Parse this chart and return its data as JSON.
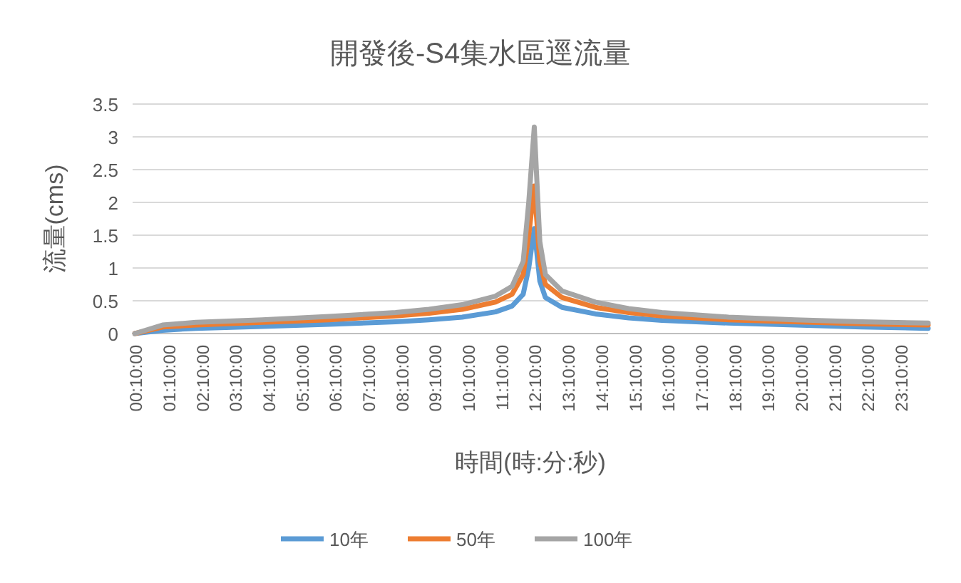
{
  "chart_data": {
    "type": "line",
    "title": "開發後-S4集水區逕流量",
    "xlabel": "時間(時:分:秒)",
    "ylabel": "流量(cms)",
    "xlim": [
      0.1,
      24.0
    ],
    "xticks": [
      {
        "value": 0.1667,
        "label": "00:10:00"
      },
      {
        "value": 1.1667,
        "label": "01:10:00"
      },
      {
        "value": 2.1667,
        "label": "02:10:00"
      },
      {
        "value": 3.1667,
        "label": "03:10:00"
      },
      {
        "value": 4.1667,
        "label": "04:10:00"
      },
      {
        "value": 5.1667,
        "label": "05:10:00"
      },
      {
        "value": 6.1667,
        "label": "06:10:00"
      },
      {
        "value": 7.1667,
        "label": "07:10:00"
      },
      {
        "value": 8.1667,
        "label": "08:10:00"
      },
      {
        "value": 9.1667,
        "label": "09:10:00"
      },
      {
        "value": 10.1667,
        "label": "10:10:00"
      },
      {
        "value": 11.1667,
        "label": "11:10:00"
      },
      {
        "value": 12.1667,
        "label": "12:10:00"
      },
      {
        "value": 13.1667,
        "label": "13:10:00"
      },
      {
        "value": 14.1667,
        "label": "14:10:00"
      },
      {
        "value": 15.1667,
        "label": "15:10:00"
      },
      {
        "value": 16.1667,
        "label": "16:10:00"
      },
      {
        "value": 17.1667,
        "label": "17:10:00"
      },
      {
        "value": 18.1667,
        "label": "18:10:00"
      },
      {
        "value": 19.1667,
        "label": "19:10:00"
      },
      {
        "value": 20.1667,
        "label": "20:10:00"
      },
      {
        "value": 21.1667,
        "label": "21:10:00"
      },
      {
        "value": 22.1667,
        "label": "22:10:00"
      },
      {
        "value": 23.1667,
        "label": "23:10:00"
      }
    ],
    "ylim": [
      0,
      3.5
    ],
    "yticks": [
      0,
      0.5,
      1,
      1.5,
      2,
      2.5,
      3,
      3.5
    ],
    "grid": "y",
    "legend": "bottom",
    "x": [
      0.1667,
      1,
      2,
      4,
      6,
      8,
      9,
      10,
      11,
      11.5,
      11.8333,
      12,
      12.1667,
      12.3333,
      12.5,
      13,
      14,
      15,
      16,
      18,
      20,
      22,
      24
    ],
    "series": [
      {
        "name": "10年",
        "color": "#5b9bd5",
        "values": [
          0,
          0.05,
          0.08,
          0.11,
          0.14,
          0.18,
          0.21,
          0.25,
          0.33,
          0.42,
          0.6,
          1.0,
          1.6,
          0.8,
          0.55,
          0.4,
          0.3,
          0.24,
          0.2,
          0.16,
          0.13,
          0.1,
          0.08
        ]
      },
      {
        "name": "50年",
        "color": "#ed7d31",
        "values": [
          0,
          0.1,
          0.13,
          0.17,
          0.21,
          0.27,
          0.31,
          0.37,
          0.48,
          0.6,
          0.9,
          1.5,
          2.25,
          1.1,
          0.75,
          0.55,
          0.4,
          0.32,
          0.27,
          0.21,
          0.18,
          0.15,
          0.13
        ]
      },
      {
        "name": "100年",
        "color": "#a5a5a5",
        "values": [
          0,
          0.13,
          0.17,
          0.21,
          0.26,
          0.32,
          0.37,
          0.44,
          0.57,
          0.72,
          1.1,
          2.0,
          3.15,
          1.4,
          0.9,
          0.65,
          0.48,
          0.38,
          0.32,
          0.25,
          0.21,
          0.18,
          0.16
        ]
      }
    ]
  }
}
